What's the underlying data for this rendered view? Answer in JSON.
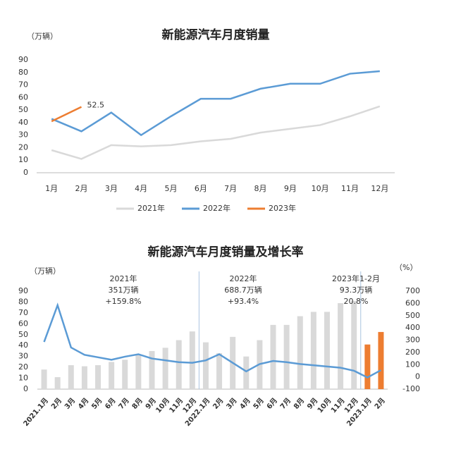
{
  "chart_data": [
    {
      "type": "line",
      "title": "新能源汽车月度销量",
      "y_label": "（万辆）",
      "categories": [
        "1月",
        "2月",
        "3月",
        "4月",
        "5月",
        "6月",
        "7月",
        "8月",
        "9月",
        "10月",
        "11月",
        "12月"
      ],
      "ylim": [
        0,
        90
      ],
      "yticks": [
        0,
        10,
        20,
        30,
        40,
        50,
        60,
        70,
        80,
        90
      ],
      "series": [
        {
          "name": "2021年",
          "color": "#d9d9d9",
          "values": [
            18,
            11,
            22,
            21,
            22,
            25,
            27,
            32,
            35,
            38,
            45,
            53
          ]
        },
        {
          "name": "2022年",
          "color": "#5b9bd5",
          "values": [
            43,
            33,
            48,
            30,
            45,
            59,
            59,
            67,
            71,
            71,
            79,
            81
          ]
        },
        {
          "name": "2023年",
          "color": "#ed7d31",
          "values": [
            41,
            52.5,
            null,
            null,
            null,
            null,
            null,
            null,
            null,
            null,
            null,
            null
          ],
          "value_labels": [
            null,
            "52.5",
            null,
            null,
            null,
            null,
            null,
            null,
            null,
            null,
            null,
            null
          ]
        }
      ],
      "legend": "bottom"
    },
    {
      "type": "combo",
      "title": "新能源汽车月度销量及增长率",
      "y_label": "（万辆）",
      "y2_label": "（%）",
      "categories": [
        "2021.1月",
        "2月",
        "3月",
        "4月",
        "5月",
        "6月",
        "7月",
        "8月",
        "9月",
        "10月",
        "11月",
        "12月",
        "2022.1月",
        "2月",
        "3月",
        "4月",
        "5月",
        "6月",
        "7月",
        "8月",
        "9月",
        "10月",
        "11月",
        "12月",
        "2023.1月",
        "2月"
      ],
      "ylim": [
        0,
        90
      ],
      "yticks": [
        0,
        10,
        20,
        30,
        40,
        50,
        60,
        70,
        80,
        90
      ],
      "y2lim": [
        -100,
        700
      ],
      "y2ticks": [
        -100,
        0,
        100,
        200,
        300,
        400,
        500,
        600,
        700
      ],
      "series": [
        {
          "type": "bar",
          "values": [
            18,
            11,
            22,
            21,
            22,
            25,
            27,
            32,
            35,
            38,
            45,
            53,
            43,
            33,
            48,
            30,
            45,
            59,
            59,
            67,
            71,
            71,
            79,
            81,
            41,
            52.5
          ],
          "colors": [
            "#d9d9d9",
            "#d9d9d9",
            "#d9d9d9",
            "#d9d9d9",
            "#d9d9d9",
            "#d9d9d9",
            "#d9d9d9",
            "#d9d9d9",
            "#d9d9d9",
            "#d9d9d9",
            "#d9d9d9",
            "#d9d9d9",
            "#d9d9d9",
            "#d9d9d9",
            "#d9d9d9",
            "#d9d9d9",
            "#d9d9d9",
            "#d9d9d9",
            "#d9d9d9",
            "#d9d9d9",
            "#d9d9d9",
            "#d9d9d9",
            "#d9d9d9",
            "#d9d9d9",
            "#ed7d31",
            "#ed7d31"
          ]
        },
        {
          "type": "line",
          "axis": "y2",
          "color": "#5b9bd5",
          "values": [
            285,
            585,
            240,
            180,
            160,
            140,
            165,
            185,
            150,
            135,
            120,
            115,
            135,
            185,
            115,
            45,
            105,
            130,
            120,
            105,
            95,
            85,
            75,
            50,
            -5,
            55
          ]
        }
      ],
      "annotations": [
        {
          "lines": [
            "2021年",
            "351万辆",
            "+159.8%"
          ]
        },
        {
          "lines": [
            "2022年",
            "688.7万辆",
            "+93.4%"
          ]
        },
        {
          "lines": [
            "2023年1-2月",
            "93.3万辆",
            "20.8%"
          ]
        }
      ]
    }
  ]
}
